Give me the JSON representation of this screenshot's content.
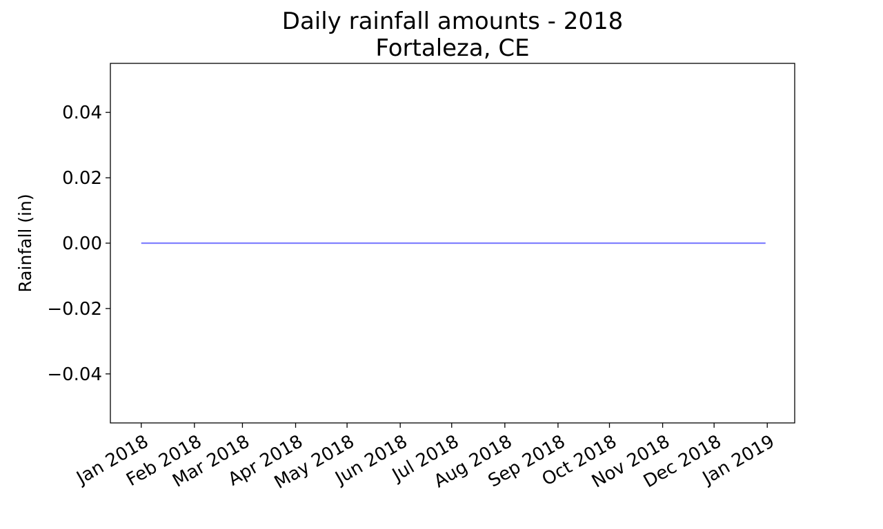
{
  "chart_data": {
    "type": "line",
    "title": "Daily rainfall amounts - 2018",
    "subtitle": "Fortaleza, CE",
    "xlabel": "",
    "ylabel": "Rainfall (in)",
    "ylim": [
      -0.055,
      0.055
    ],
    "xlim": [
      "2017-12-14",
      "2019-01-17"
    ],
    "x_ticks": [
      "2018-01-01",
      "2018-02-01",
      "2018-03-01",
      "2018-04-01",
      "2018-05-01",
      "2018-06-01",
      "2018-07-01",
      "2018-08-01",
      "2018-09-01",
      "2018-10-01",
      "2018-11-01",
      "2018-12-01",
      "2019-01-01"
    ],
    "x_tick_labels": [
      "Jan 2018",
      "Feb 2018",
      "Mar 2018",
      "Apr 2018",
      "May 2018",
      "Jun 2018",
      "Jul 2018",
      "Aug 2018",
      "Sep 2018",
      "Oct 2018",
      "Nov 2018",
      "Dec 2018",
      "Jan 2019"
    ],
    "y_ticks": [
      -0.04,
      -0.02,
      0.0,
      0.02,
      0.04
    ],
    "y_tick_labels": [
      "−0.04",
      "−0.02",
      "0.00",
      "0.02",
      "0.04"
    ],
    "grid": false,
    "legend": "none",
    "series": [
      {
        "color": "#8080ff",
        "x": [
          "2018-01-01",
          "2018-12-31"
        ],
        "y": [
          0.0,
          0.0
        ]
      }
    ]
  }
}
